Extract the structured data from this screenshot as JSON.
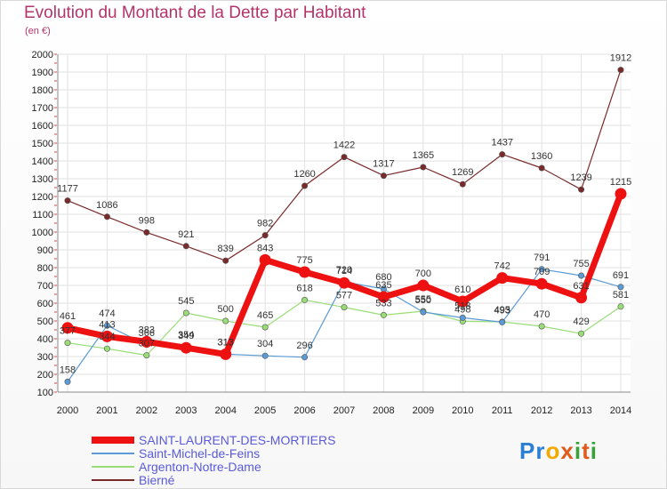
{
  "header": {
    "title": "Evolution du Montant de la Dette par Habitant",
    "subtitle": "(en €)"
  },
  "logo": {
    "text": "Proxiti"
  },
  "chart_data": {
    "type": "line",
    "title": "Evolution du Montant de la Dette par Habitant",
    "subtitle": "(en €)",
    "x": [
      "2000",
      "2001",
      "2002",
      "2003",
      "2004",
      "2005",
      "2006",
      "2007",
      "2008",
      "2009",
      "2010",
      "2011",
      "2012",
      "2013",
      "2014"
    ],
    "yticks": [
      100,
      200,
      300,
      400,
      500,
      600,
      700,
      800,
      900,
      1000,
      1100,
      1200,
      1300,
      1400,
      1500,
      1600,
      1700,
      1800,
      1900,
      2000
    ],
    "ylim": [
      100,
      2000
    ],
    "grid": true,
    "legend_position": "bottom-left",
    "series": [
      {
        "name": "SAINT-LAURENT-DES-MORTIERS",
        "color": "#ee1111",
        "width": 7,
        "values": [
          461,
          413,
          383,
          349,
          313,
          843,
          775,
          714,
          635,
          700,
          610,
          742,
          709,
          631,
          1215
        ]
      },
      {
        "name": "Saint-Michel-de-Feins",
        "color": "#5b9bd5",
        "width": 1.2,
        "values": [
          158,
          474,
          366,
          354,
          313,
          304,
          296,
          720,
          680,
          550,
          518,
          493,
          791,
          755,
          691
        ]
      },
      {
        "name": "Argenton-Notre-Dame",
        "color": "#99dd77",
        "width": 1.2,
        "values": [
          377,
          344,
          307,
          545,
          500,
          465,
          618,
          577,
          533,
          555,
          498,
          495,
          470,
          429,
          581
        ]
      },
      {
        "name": "Bierné",
        "color": "#7a2a2a",
        "width": 1.2,
        "values": [
          1177,
          1086,
          998,
          921,
          839,
          982,
          1260,
          1422,
          1317,
          1365,
          1269,
          1437,
          1360,
          1239,
          1912
        ]
      }
    ]
  }
}
